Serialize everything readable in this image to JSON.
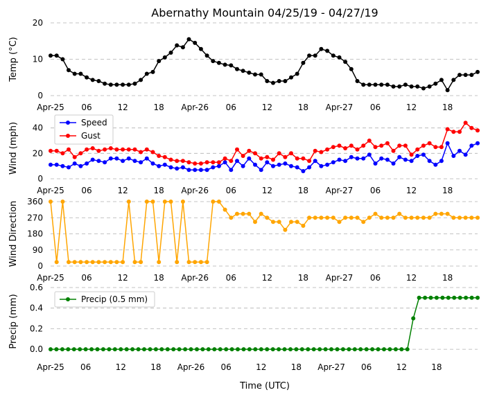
{
  "title": "Abernathy Mountain 04/25/19 - 04/27/19",
  "xlabel": "Time (UTC)",
  "x_tick_labels": [
    "Apr-25",
    "06",
    "12",
    "18",
    "Apr-26",
    "06",
    "12",
    "18",
    "Apr-27",
    "06",
    "12",
    "18"
  ],
  "chart_data": [
    {
      "type": "line",
      "ylabel": "Temp (°C)",
      "ylim": [
        0,
        20
      ],
      "yticks": [
        0,
        10,
        20
      ],
      "grid": true,
      "series": [
        {
          "color": "#000000",
          "values": [
            11,
            11,
            10,
            7,
            6,
            6,
            5,
            4.3,
            4,
            3.3,
            3,
            3,
            3,
            3,
            3.3,
            4.3,
            6,
            6.5,
            9.5,
            10.5,
            11.8,
            13.8,
            13.3,
            15.5,
            14.5,
            12.8,
            11,
            9.5,
            9,
            8.5,
            8.3,
            7.3,
            6.8,
            6.3,
            5.8,
            5.8,
            4,
            3.5,
            4,
            4,
            5,
            6,
            9,
            11,
            11,
            12.8,
            12.3,
            11,
            10.5,
            9.3,
            7.3,
            4,
            3,
            3,
            3,
            3,
            3,
            2.5,
            2.5,
            3,
            2.5,
            2.5,
            2,
            2.5,
            3.3,
            4.3,
            1.5,
            4.3,
            5.7,
            5.7,
            5.7,
            6.5
          ]
        }
      ]
    },
    {
      "type": "line",
      "ylabel": "Wind (mph)",
      "ylim": [
        0,
        48
      ],
      "yticks": [
        0,
        20,
        40
      ],
      "grid": true,
      "legend": "top-left",
      "series": [
        {
          "name": "Speed",
          "color": "#0000ff",
          "values": [
            11,
            11,
            10,
            9,
            12,
            10,
            12,
            15,
            14,
            13,
            16,
            16,
            14,
            16,
            14,
            13,
            16,
            12,
            10,
            11,
            9,
            8,
            9,
            7,
            7,
            7,
            7,
            9,
            10,
            13,
            7,
            14,
            10,
            16,
            11,
            7,
            13,
            10,
            11,
            12,
            10,
            9,
            6,
            9,
            14,
            10,
            11,
            13,
            15,
            14,
            17,
            16,
            16,
            19,
            12,
            16,
            15,
            12,
            17,
            15,
            14,
            18,
            19,
            14,
            11,
            14,
            28,
            18,
            22,
            19,
            26,
            28
          ]
        },
        {
          "name": "Gust",
          "color": "#ff0000",
          "values": [
            22,
            22,
            20,
            23,
            17,
            20,
            23,
            24,
            22,
            23,
            24,
            23,
            23,
            23,
            23,
            21,
            23,
            21,
            18,
            17,
            15,
            14,
            14,
            13,
            12,
            12,
            13,
            13,
            13,
            16,
            14,
            23,
            18,
            22,
            20,
            16,
            17,
            15,
            20,
            17,
            20,
            16,
            16,
            14,
            22,
            21,
            23,
            25,
            26,
            24,
            26,
            23,
            26,
            30,
            25,
            26,
            28,
            22,
            26,
            26,
            19,
            23,
            26,
            28,
            25,
            25,
            39,
            37,
            37,
            44,
            40,
            38
          ]
        }
      ]
    },
    {
      "type": "line",
      "ylabel": "Wind Direction",
      "ylim": [
        0,
        360
      ],
      "yticks": [
        0,
        90,
        180,
        270,
        360
      ],
      "grid": true,
      "series": [
        {
          "color": "#ffa500",
          "values": [
            360,
            22,
            360,
            22,
            22,
            22,
            22,
            22,
            22,
            22,
            22,
            22,
            22,
            360,
            22,
            22,
            360,
            360,
            22,
            360,
            360,
            22,
            360,
            22,
            22,
            22,
            22,
            360,
            360,
            315,
            270,
            292,
            292,
            292,
            247,
            292,
            270,
            247,
            247,
            202,
            247,
            247,
            225,
            270,
            270,
            270,
            270,
            270,
            247,
            270,
            270,
            270,
            247,
            270,
            292,
            270,
            270,
            270,
            292,
            270,
            270,
            270,
            270,
            270,
            292,
            292,
            292,
            270,
            270,
            270,
            270,
            270
          ]
        }
      ]
    },
    {
      "type": "line",
      "ylabel": "Precip (mm)",
      "ylim": [
        -0.06,
        0.6
      ],
      "yticks": [
        0.0,
        0.2,
        0.4,
        0.6
      ],
      "ytick_labels": [
        "0.0",
        "0.2",
        "0.4",
        "0.6"
      ],
      "grid": true,
      "legend": "top-left",
      "series": [
        {
          "name": "Precip (0.5 mm)",
          "color": "#008000",
          "values": [
            0,
            0,
            0,
            0,
            0,
            0,
            0,
            0,
            0,
            0,
            0,
            0,
            0,
            0,
            0,
            0,
            0,
            0,
            0,
            0,
            0,
            0,
            0,
            0,
            0,
            0,
            0,
            0,
            0,
            0,
            0,
            0,
            0,
            0,
            0,
            0,
            0,
            0,
            0,
            0,
            0,
            0,
            0,
            0,
            0,
            0,
            0,
            0,
            0,
            0,
            0,
            0,
            0,
            0,
            0,
            0,
            0,
            0,
            0,
            0,
            0,
            0,
            0.3,
            0.5,
            0.5,
            0.5,
            0.5,
            0.5,
            0.5,
            0.5,
            0.5,
            0.5,
            0.5,
            0.5
          ]
        }
      ]
    }
  ]
}
